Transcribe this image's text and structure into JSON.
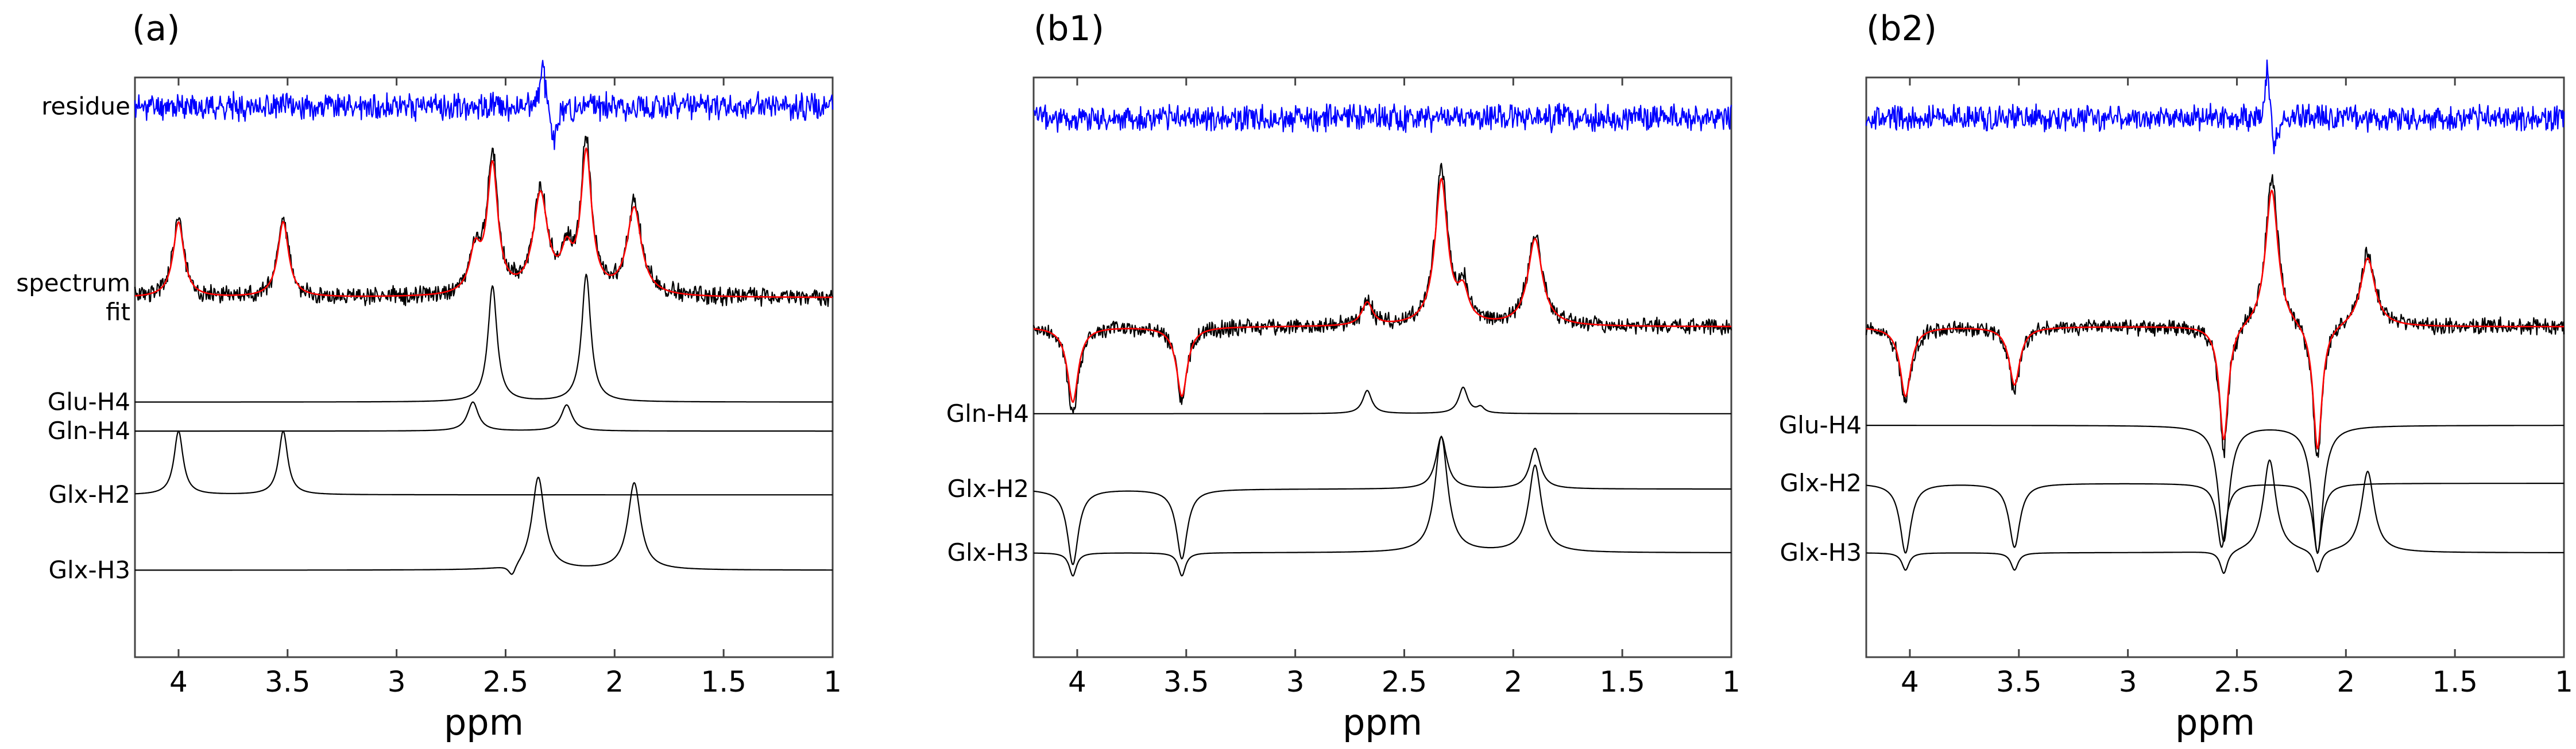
{
  "figure": {
    "panels": [
      {
        "id": "a",
        "label": "(a)",
        "traces": [
          {
            "key": "residue",
            "label": "residue",
            "color": "#0000ff"
          },
          {
            "key": "spectrum",
            "label": "spectrum",
            "color": "#000000"
          },
          {
            "key": "fit",
            "label": "fit",
            "color": "#ff0000"
          },
          {
            "key": "glu_h4",
            "label": "Glu-H4",
            "color": "#000000"
          },
          {
            "key": "gln_h4",
            "label": "Gln-H4",
            "color": "#000000"
          },
          {
            "key": "glx_h2",
            "label": "Glx-H2",
            "color": "#000000"
          },
          {
            "key": "glx_h3",
            "label": "Glx-H3",
            "color": "#000000"
          }
        ]
      },
      {
        "id": "b1",
        "label": "(b1)",
        "traces": [
          {
            "key": "residue",
            "label": "",
            "color": "#0000ff"
          },
          {
            "key": "spectrum",
            "label": "",
            "color": "#000000"
          },
          {
            "key": "fit",
            "label": "",
            "color": "#ff0000"
          },
          {
            "key": "gln_h4",
            "label": "Gln-H4",
            "color": "#000000"
          },
          {
            "key": "glx_h2",
            "label": "Glx-H2",
            "color": "#000000"
          },
          {
            "key": "glx_h3",
            "label": "Glx-H3",
            "color": "#000000"
          }
        ]
      },
      {
        "id": "b2",
        "label": "(b2)",
        "traces": [
          {
            "key": "residue",
            "label": "",
            "color": "#0000ff"
          },
          {
            "key": "spectrum",
            "label": "",
            "color": "#000000"
          },
          {
            "key": "fit",
            "label": "",
            "color": "#ff0000"
          },
          {
            "key": "glu_h4",
            "label": "Glu-H4",
            "color": "#000000"
          },
          {
            "key": "glx_h2",
            "label": "Glx-H2",
            "color": "#000000"
          },
          {
            "key": "glx_h3",
            "label": "Glx-H3",
            "color": "#000000"
          }
        ]
      }
    ]
  },
  "chart_data": [
    {
      "type": "line",
      "panel": "(a)",
      "xlabel": "ppm",
      "ylabel": "",
      "x_reversed": true,
      "xlim": [
        4.2,
        1.0
      ],
      "xticks": [
        4,
        3.5,
        3,
        2.5,
        2,
        1.5,
        1
      ],
      "xtick_labels": [
        "4",
        "3.5",
        "3",
        "2.5",
        "2",
        "1.5",
        "1"
      ],
      "series": [
        {
          "name": "residue",
          "type": "noise",
          "offset": 0.95,
          "noise_amp": 0.035,
          "seed": 11,
          "color": "#0000ff",
          "peaks": [
            {
              "ppm": 2.33,
              "amp": 0.07,
              "width": 0.015
            },
            {
              "ppm": 2.28,
              "amp": -0.07,
              "width": 0.015
            }
          ]
        },
        {
          "name": "spectrum",
          "type": "noisy",
          "offset": 0.62,
          "noise_amp": 0.025,
          "seed": 23,
          "color": "#000000",
          "peaks": [
            {
              "ppm": 4.0,
              "amp": 0.14,
              "width": 0.03
            },
            {
              "ppm": 3.52,
              "amp": 0.14,
              "width": 0.03
            },
            {
              "ppm": 2.56,
              "amp": 0.24,
              "width": 0.03
            },
            {
              "ppm": 2.34,
              "amp": 0.18,
              "width": 0.04
            },
            {
              "ppm": 2.13,
              "amp": 0.26,
              "width": 0.03
            },
            {
              "ppm": 1.91,
              "amp": 0.16,
              "width": 0.04
            },
            {
              "ppm": 2.64,
              "amp": 0.07,
              "width": 0.03
            },
            {
              "ppm": 2.22,
              "amp": 0.06,
              "width": 0.03
            }
          ]
        },
        {
          "name": "fit",
          "type": "smooth",
          "offset": 0.62,
          "seed": 0,
          "color": "#ff0000",
          "peaks": [
            {
              "ppm": 4.0,
              "amp": 0.13,
              "width": 0.03
            },
            {
              "ppm": 3.52,
              "amp": 0.13,
              "width": 0.03
            },
            {
              "ppm": 2.56,
              "amp": 0.22,
              "width": 0.03
            },
            {
              "ppm": 2.34,
              "amp": 0.17,
              "width": 0.04
            },
            {
              "ppm": 2.13,
              "amp": 0.24,
              "width": 0.03
            },
            {
              "ppm": 1.91,
              "amp": 0.15,
              "width": 0.04
            },
            {
              "ppm": 2.64,
              "amp": 0.07,
              "width": 0.03
            },
            {
              "ppm": 2.22,
              "amp": 0.06,
              "width": 0.03
            }
          ]
        },
        {
          "name": "Glu-H4",
          "type": "smooth",
          "offset": 0.44,
          "seed": 0,
          "color": "#000000",
          "peaks": [
            {
              "ppm": 2.56,
              "amp": 0.2,
              "width": 0.025
            },
            {
              "ppm": 2.13,
              "amp": 0.22,
              "width": 0.025
            }
          ]
        },
        {
          "name": "Gln-H4",
          "type": "smooth",
          "offset": 0.39,
          "seed": 0,
          "color": "#000000",
          "peaks": [
            {
              "ppm": 2.65,
              "amp": 0.05,
              "width": 0.03
            },
            {
              "ppm": 2.22,
              "amp": 0.045,
              "width": 0.03
            }
          ]
        },
        {
          "name": "Glx-H2",
          "type": "smooth",
          "offset": 0.28,
          "seed": 0,
          "color": "#000000",
          "peaks": [
            {
              "ppm": 4.0,
              "amp": 0.11,
              "width": 0.025
            },
            {
              "ppm": 3.52,
              "amp": 0.11,
              "width": 0.025
            }
          ]
        },
        {
          "name": "Glx-H3",
          "type": "smooth",
          "offset": 0.15,
          "seed": 0,
          "color": "#000000",
          "peaks": [
            {
              "ppm": 2.35,
              "amp": 0.16,
              "width": 0.035
            },
            {
              "ppm": 1.91,
              "amp": 0.15,
              "width": 0.035
            },
            {
              "ppm": 2.47,
              "amp": -0.02,
              "width": 0.02
            }
          ]
        }
      ]
    },
    {
      "type": "line",
      "panel": "(b1)",
      "xlabel": "ppm",
      "ylabel": "",
      "x_reversed": true,
      "xlim": [
        4.2,
        1.0
      ],
      "xticks": [
        4,
        3.5,
        3,
        2.5,
        2,
        1.5,
        1
      ],
      "xtick_labels": [
        "4",
        "3.5",
        "3",
        "2.5",
        "2",
        "1.5",
        "1"
      ],
      "series": [
        {
          "name": "residue",
          "type": "noise",
          "offset": 0.93,
          "noise_amp": 0.035,
          "seed": 37,
          "color": "#0000ff",
          "peaks": []
        },
        {
          "name": "spectrum",
          "type": "noisy",
          "offset": 0.57,
          "noise_amp": 0.022,
          "seed": 41,
          "color": "#000000",
          "peaks": [
            {
              "ppm": 4.02,
              "amp": -0.15,
              "width": 0.03
            },
            {
              "ppm": 3.52,
              "amp": -0.13,
              "width": 0.03
            },
            {
              "ppm": 2.33,
              "amp": 0.27,
              "width": 0.035
            },
            {
              "ppm": 1.9,
              "amp": 0.16,
              "width": 0.04
            },
            {
              "ppm": 2.67,
              "amp": 0.04,
              "width": 0.03
            },
            {
              "ppm": 2.23,
              "amp": 0.06,
              "width": 0.03
            }
          ]
        },
        {
          "name": "fit",
          "type": "smooth",
          "offset": 0.57,
          "seed": 0,
          "color": "#ff0000",
          "peaks": [
            {
              "ppm": 4.02,
              "amp": -0.13,
              "width": 0.03
            },
            {
              "ppm": 3.52,
              "amp": -0.12,
              "width": 0.03
            },
            {
              "ppm": 2.33,
              "amp": 0.25,
              "width": 0.035
            },
            {
              "ppm": 1.9,
              "amp": 0.15,
              "width": 0.04
            },
            {
              "ppm": 2.67,
              "amp": 0.04,
              "width": 0.03
            },
            {
              "ppm": 2.23,
              "amp": 0.05,
              "width": 0.03
            }
          ]
        },
        {
          "name": "Gln-H4",
          "type": "smooth",
          "offset": 0.42,
          "seed": 0,
          "color": "#000000",
          "peaks": [
            {
              "ppm": 2.67,
              "amp": 0.04,
              "width": 0.025
            },
            {
              "ppm": 2.23,
              "amp": 0.045,
              "width": 0.025
            },
            {
              "ppm": 2.15,
              "amp": 0.01,
              "width": 0.02
            }
          ]
        },
        {
          "name": "Glx-H2",
          "type": "smooth",
          "offset": 0.29,
          "seed": 0,
          "color": "#000000",
          "peaks": [
            {
              "ppm": 4.02,
              "amp": -0.13,
              "width": 0.03
            },
            {
              "ppm": 3.52,
              "amp": -0.12,
              "width": 0.03
            },
            {
              "ppm": 2.33,
              "amp": 0.09,
              "width": 0.03
            },
            {
              "ppm": 1.9,
              "amp": 0.07,
              "width": 0.03
            }
          ]
        },
        {
          "name": "Glx-H3",
          "type": "smooth",
          "offset": 0.18,
          "seed": 0,
          "color": "#000000",
          "peaks": [
            {
              "ppm": 2.33,
              "amp": 0.2,
              "width": 0.035
            },
            {
              "ppm": 1.9,
              "amp": 0.15,
              "width": 0.035
            },
            {
              "ppm": 4.02,
              "amp": -0.04,
              "width": 0.02
            },
            {
              "ppm": 3.52,
              "amp": -0.04,
              "width": 0.02
            }
          ]
        }
      ]
    },
    {
      "type": "line",
      "panel": "(b2)",
      "xlabel": "ppm",
      "ylabel": "",
      "x_reversed": true,
      "xlim": [
        4.2,
        1.0
      ],
      "xticks": [
        4,
        3.5,
        3,
        2.5,
        2,
        1.5,
        1
      ],
      "xtick_labels": [
        "4",
        "3.5",
        "3",
        "2.5",
        "2",
        "1.5",
        "1"
      ],
      "series": [
        {
          "name": "residue",
          "type": "noise",
          "offset": 0.93,
          "noise_amp": 0.035,
          "seed": 53,
          "color": "#0000ff",
          "peaks": [
            {
              "ppm": 2.36,
              "amp": 0.1,
              "width": 0.012
            },
            {
              "ppm": 2.33,
              "amp": -0.07,
              "width": 0.012
            }
          ]
        },
        {
          "name": "spectrum",
          "type": "noisy",
          "offset": 0.57,
          "noise_amp": 0.022,
          "seed": 59,
          "color": "#000000",
          "peaks": [
            {
              "ppm": 4.02,
              "amp": -0.13,
              "width": 0.03
            },
            {
              "ppm": 3.52,
              "amp": -0.11,
              "width": 0.03
            },
            {
              "ppm": 2.56,
              "amp": -0.22,
              "width": 0.025
            },
            {
              "ppm": 2.34,
              "amp": 0.26,
              "width": 0.035
            },
            {
              "ppm": 2.13,
              "amp": -0.24,
              "width": 0.025
            },
            {
              "ppm": 1.9,
              "amp": 0.13,
              "width": 0.04
            }
          ]
        },
        {
          "name": "fit",
          "type": "smooth",
          "offset": 0.57,
          "seed": 0,
          "color": "#ff0000",
          "peaks": [
            {
              "ppm": 4.02,
              "amp": -0.12,
              "width": 0.03
            },
            {
              "ppm": 3.52,
              "amp": -0.1,
              "width": 0.03
            },
            {
              "ppm": 2.56,
              "amp": -0.2,
              "width": 0.025
            },
            {
              "ppm": 2.34,
              "amp": 0.24,
              "width": 0.035
            },
            {
              "ppm": 2.13,
              "amp": -0.22,
              "width": 0.025
            },
            {
              "ppm": 1.9,
              "amp": 0.12,
              "width": 0.04
            }
          ]
        },
        {
          "name": "Glu-H4",
          "type": "smooth",
          "offset": 0.4,
          "seed": 0,
          "color": "#000000",
          "peaks": [
            {
              "ppm": 2.56,
              "amp": -0.2,
              "width": 0.03
            },
            {
              "ppm": 2.13,
              "amp": -0.22,
              "width": 0.03
            }
          ]
        },
        {
          "name": "Glx-H2",
          "type": "smooth",
          "offset": 0.3,
          "seed": 0,
          "color": "#000000",
          "peaks": [
            {
              "ppm": 4.02,
              "amp": -0.12,
              "width": 0.03
            },
            {
              "ppm": 3.52,
              "amp": -0.11,
              "width": 0.03
            },
            {
              "ppm": 2.57,
              "amp": -0.11,
              "width": 0.025
            },
            {
              "ppm": 2.13,
              "amp": -0.12,
              "width": 0.025
            }
          ]
        },
        {
          "name": "Glx-H3",
          "type": "smooth",
          "offset": 0.18,
          "seed": 0,
          "color": "#000000",
          "peaks": [
            {
              "ppm": 2.35,
              "amp": 0.16,
              "width": 0.035
            },
            {
              "ppm": 1.9,
              "amp": 0.14,
              "width": 0.035
            },
            {
              "ppm": 4.02,
              "amp": -0.03,
              "width": 0.02
            },
            {
              "ppm": 3.52,
              "amp": -0.03,
              "width": 0.02
            },
            {
              "ppm": 2.56,
              "amp": -0.04,
              "width": 0.02
            },
            {
              "ppm": 2.13,
              "amp": -0.04,
              "width": 0.02
            }
          ]
        }
      ]
    }
  ]
}
